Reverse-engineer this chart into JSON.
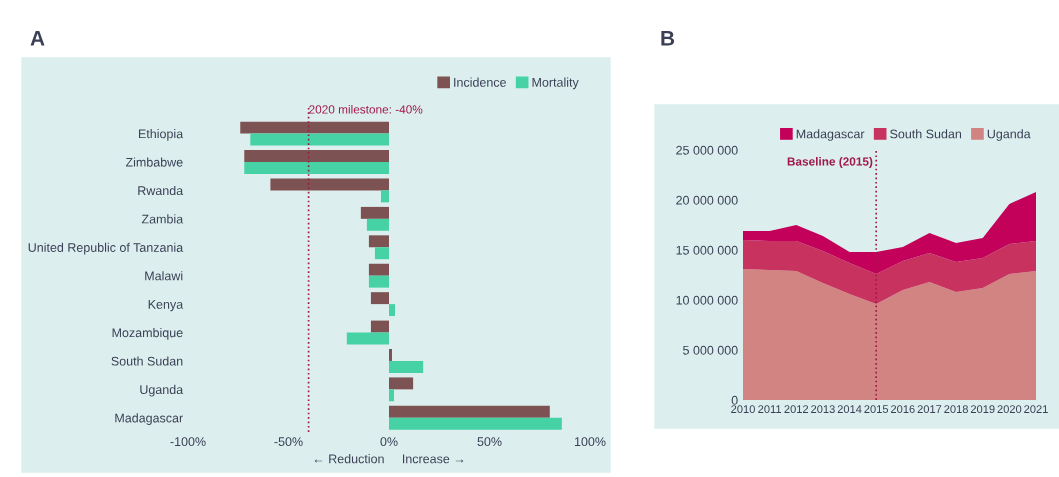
{
  "chart_data": [
    {
      "type": "bar",
      "title": "A",
      "orientation": "horizontal",
      "xlabel": "← Reduction     Increase →",
      "legend": "top right",
      "grid": false,
      "categories": [
        "Ethiopia",
        "Zimbabwe",
        "Rwanda",
        "Zambia",
        "United Republic of Tanzania",
        "Malawi",
        "Kenya",
        "Mozambique",
        "South Sudan",
        "Uganda",
        "Madagascar"
      ],
      "series": [
        {
          "name": "Incidence",
          "color": "#7d5252",
          "values": [
            -74,
            -72,
            -59,
            -14,
            -10,
            -10,
            -9,
            -9,
            1.5,
            12,
            80
          ]
        },
        {
          "name": "Mortality",
          "color": "#46d2a5",
          "values": [
            -69,
            -72,
            -4,
            -11,
            -7,
            -10,
            3,
            -21,
            17,
            2.5,
            86
          ]
        }
      ],
      "xlim": [
        -100,
        100
      ],
      "xticks": [
        {
          "value": -100,
          "label": "-100%"
        },
        {
          "value": -50,
          "label": "-50%"
        },
        {
          "value": 0,
          "label": "0%"
        },
        {
          "value": 50,
          "label": "50%"
        },
        {
          "value": 100,
          "label": "100%"
        }
      ],
      "ref_lines": [
        {
          "axis": "x",
          "value": -40,
          "label": "2020 milestone: -40%",
          "color": "#a0194a",
          "line_style": "dotted"
        }
      ]
    },
    {
      "type": "area",
      "title": "B",
      "stacked": true,
      "legend": "top right",
      "grid": false,
      "x": [
        2010,
        2011,
        2012,
        2013,
        2014,
        2015,
        2016,
        2017,
        2018,
        2019,
        2020,
        2021
      ],
      "series": [
        {
          "name": "Uganda",
          "color": "#d28482",
          "values": [
            13100000,
            13000000,
            12900000,
            11700000,
            10600000,
            9600000,
            11000000,
            11800000,
            10800000,
            11200000,
            12600000,
            12900000
          ]
        },
        {
          "name": "South Sudan",
          "color": "#c8325f",
          "values": [
            2900000,
            2900000,
            3000000,
            3200000,
            3100000,
            3000000,
            2900000,
            2900000,
            3000000,
            3000000,
            3000000,
            3000000
          ]
        },
        {
          "name": "Madagascar",
          "color": "#c3005a",
          "values": [
            900000,
            1000000,
            1600000,
            1500000,
            1100000,
            2200000,
            1400000,
            2000000,
            1900000,
            2000000,
            4000000,
            4900000
          ]
        }
      ],
      "xlim": [
        2010,
        2021
      ],
      "xticks": [
        2010,
        2011,
        2012,
        2013,
        2014,
        2015,
        2016,
        2017,
        2018,
        2019,
        2020,
        2021
      ],
      "ylim": [
        0,
        25000000
      ],
      "yticks": [
        {
          "value": 0,
          "label": "0"
        },
        {
          "value": 5000000,
          "label": "5 000 000"
        },
        {
          "value": 10000000,
          "label": "10 000 000"
        },
        {
          "value": 15000000,
          "label": "15 000 000"
        },
        {
          "value": 20000000,
          "label": "20 000 000"
        },
        {
          "value": 25000000,
          "label": "25 000 000"
        }
      ],
      "ref_lines": [
        {
          "axis": "x",
          "value": 2015,
          "label": "Baseline (2015)",
          "color": "#a0194a",
          "line_style": "dotted"
        }
      ]
    }
  ]
}
